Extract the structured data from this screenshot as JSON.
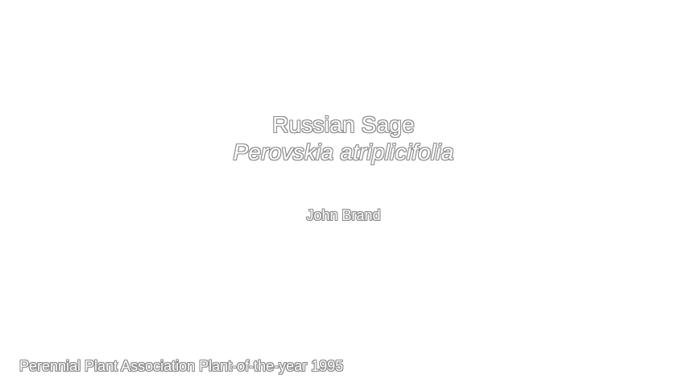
{
  "slide": {
    "common_name": "Russian Sage",
    "latin_name": "Perovskia atriplicifolia",
    "author": "John Brand",
    "footer": "Perennial Plant Association Plant-of-the-year 1995",
    "colors": {
      "background": "#ffffff",
      "text_fill": "#ffffff",
      "text_outline": "#8a8a8a"
    }
  }
}
